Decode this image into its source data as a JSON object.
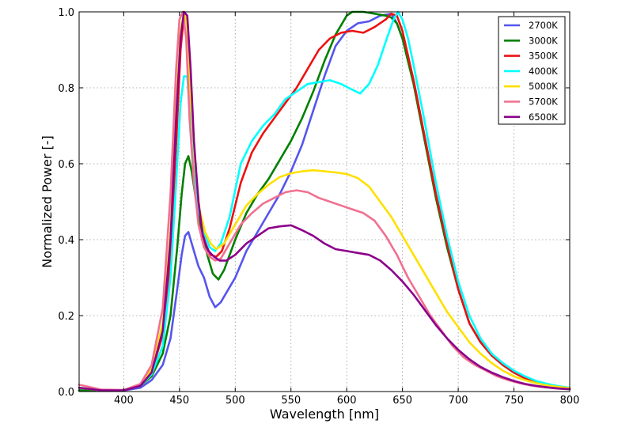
{
  "chart_data": {
    "type": "line",
    "title": "",
    "xlabel": "Wavelength [nm]",
    "ylabel": "Normalized Power [-]",
    "xlim": [
      360,
      800
    ],
    "ylim": [
      0,
      1.0
    ],
    "xticks": [
      400,
      450,
      500,
      550,
      600,
      650,
      700,
      750,
      800
    ],
    "yticks": [
      0.0,
      0.2,
      0.4,
      0.6,
      0.8,
      1.0
    ],
    "xtick_labels": [
      "400",
      "450",
      "500",
      "550",
      "600",
      "650",
      "700",
      "750",
      "800"
    ],
    "ytick_labels": [
      "0.0",
      "0.2",
      "0.4",
      "0.6",
      "0.8",
      "1.0"
    ],
    "grid": true,
    "legend_position": "top-right",
    "series": [
      {
        "name": "2700K",
        "color": "#5555ee",
        "x": [
          360,
          380,
          400,
          415,
          425,
          435,
          442,
          448,
          452,
          455,
          458,
          462,
          467,
          472,
          477,
          482,
          487,
          492,
          500,
          510,
          520,
          530,
          540,
          550,
          560,
          570,
          580,
          590,
          600,
          610,
          620,
          630,
          640,
          645,
          650,
          660,
          670,
          680,
          690,
          700,
          710,
          720,
          730,
          740,
          750,
          760,
          770,
          780,
          790,
          800
        ],
        "y": [
          0.003,
          0.002,
          0.003,
          0.01,
          0.03,
          0.07,
          0.14,
          0.27,
          0.36,
          0.41,
          0.42,
          0.38,
          0.33,
          0.3,
          0.25,
          0.222,
          0.235,
          0.26,
          0.3,
          0.37,
          0.42,
          0.47,
          0.52,
          0.58,
          0.65,
          0.74,
          0.83,
          0.91,
          0.95,
          0.97,
          0.975,
          0.99,
          0.995,
          0.97,
          0.93,
          0.82,
          0.67,
          0.52,
          0.39,
          0.27,
          0.18,
          0.13,
          0.095,
          0.07,
          0.05,
          0.035,
          0.025,
          0.018,
          0.012,
          0.008
        ]
      },
      {
        "name": "3000K",
        "color": "#008000",
        "x": [
          360,
          380,
          400,
          415,
          425,
          435,
          442,
          448,
          452,
          455,
          458,
          461,
          465,
          470,
          475,
          480,
          485,
          490,
          500,
          510,
          520,
          530,
          540,
          550,
          560,
          570,
          580,
          590,
          600,
          605,
          615,
          625,
          635,
          640,
          645,
          650,
          660,
          670,
          680,
          690,
          700,
          710,
          720,
          730,
          740,
          750,
          760,
          770,
          780,
          790,
          800
        ],
        "y": [
          0.003,
          0.002,
          0.003,
          0.015,
          0.04,
          0.1,
          0.2,
          0.38,
          0.52,
          0.6,
          0.62,
          0.58,
          0.5,
          0.42,
          0.36,
          0.31,
          0.295,
          0.32,
          0.4,
          0.47,
          0.52,
          0.56,
          0.61,
          0.66,
          0.72,
          0.79,
          0.87,
          0.94,
          0.99,
          1.0,
          1.0,
          0.995,
          0.99,
          0.985,
          0.97,
          0.93,
          0.81,
          0.66,
          0.51,
          0.38,
          0.27,
          0.18,
          0.13,
          0.095,
          0.07,
          0.05,
          0.035,
          0.025,
          0.018,
          0.012,
          0.008
        ]
      },
      {
        "name": "3500K",
        "color": "#ee1111",
        "x": [
          360,
          380,
          400,
          415,
          425,
          435,
          442,
          447,
          451,
          454,
          457,
          460,
          464,
          468,
          473,
          478,
          483,
          488,
          495,
          505,
          515,
          525,
          535,
          545,
          555,
          565,
          575,
          585,
          595,
          605,
          615,
          625,
          635,
          640,
          645,
          650,
          660,
          670,
          680,
          690,
          700,
          710,
          720,
          730,
          740,
          750,
          760,
          770,
          780,
          790,
          800
        ],
        "y": [
          0.01,
          0.003,
          0.003,
          0.015,
          0.05,
          0.15,
          0.35,
          0.65,
          0.9,
          0.99,
          0.98,
          0.8,
          0.6,
          0.47,
          0.39,
          0.36,
          0.355,
          0.37,
          0.43,
          0.55,
          0.63,
          0.68,
          0.72,
          0.76,
          0.8,
          0.85,
          0.9,
          0.93,
          0.945,
          0.95,
          0.945,
          0.96,
          0.98,
          0.995,
          0.99,
          0.95,
          0.82,
          0.67,
          0.52,
          0.39,
          0.27,
          0.18,
          0.13,
          0.095,
          0.07,
          0.05,
          0.035,
          0.025,
          0.018,
          0.012,
          0.008
        ]
      },
      {
        "name": "4000K",
        "color": "#00ffff",
        "x": [
          360,
          380,
          400,
          415,
          425,
          435,
          442,
          447,
          451,
          454,
          457,
          460,
          463,
          467,
          472,
          477,
          482,
          487,
          495,
          505,
          515,
          525,
          535,
          545,
          555,
          565,
          575,
          585,
          595,
          605,
          612,
          620,
          628,
          636,
          642,
          646,
          650,
          655,
          660,
          670,
          680,
          690,
          700,
          710,
          720,
          730,
          740,
          750,
          760,
          770,
          780,
          790,
          800
        ],
        "y": [
          0.01,
          0.003,
          0.003,
          0.015,
          0.045,
          0.12,
          0.3,
          0.55,
          0.76,
          0.83,
          0.83,
          0.7,
          0.57,
          0.48,
          0.42,
          0.38,
          0.37,
          0.39,
          0.46,
          0.6,
          0.66,
          0.7,
          0.73,
          0.77,
          0.79,
          0.81,
          0.815,
          0.82,
          0.81,
          0.795,
          0.785,
          0.81,
          0.86,
          0.93,
          0.98,
          1.0,
          0.98,
          0.93,
          0.86,
          0.71,
          0.55,
          0.41,
          0.29,
          0.2,
          0.14,
          0.1,
          0.075,
          0.055,
          0.04,
          0.028,
          0.02,
          0.014,
          0.01
        ]
      },
      {
        "name": "5000K",
        "color": "#ffe000",
        "x": [
          360,
          380,
          400,
          415,
          425,
          435,
          442,
          447,
          451,
          454,
          457,
          460,
          464,
          468,
          473,
          478,
          483,
          490,
          500,
          510,
          520,
          530,
          540,
          550,
          560,
          570,
          580,
          590,
          600,
          610,
          620,
          630,
          640,
          650,
          660,
          670,
          680,
          690,
          700,
          710,
          720,
          730,
          740,
          750,
          760,
          770,
          780,
          790,
          800
        ],
        "y": [
          0.01,
          0.003,
          0.003,
          0.02,
          0.06,
          0.18,
          0.42,
          0.75,
          0.95,
          1.0,
          0.96,
          0.78,
          0.6,
          0.48,
          0.42,
          0.39,
          0.375,
          0.39,
          0.44,
          0.49,
          0.52,
          0.545,
          0.565,
          0.575,
          0.58,
          0.583,
          0.58,
          0.577,
          0.573,
          0.562,
          0.54,
          0.5,
          0.46,
          0.41,
          0.36,
          0.31,
          0.26,
          0.21,
          0.17,
          0.13,
          0.1,
          0.075,
          0.055,
          0.04,
          0.03,
          0.022,
          0.016,
          0.012,
          0.009
        ]
      },
      {
        "name": "5700K",
        "color": "#f07090",
        "x": [
          360,
          380,
          400,
          415,
          425,
          435,
          442,
          447,
          450,
          453,
          456,
          459,
          463,
          467,
          472,
          477,
          482,
          487,
          495,
          505,
          515,
          525,
          535,
          545,
          555,
          565,
          575,
          585,
          595,
          605,
          615,
          625,
          635,
          645,
          655,
          665,
          675,
          685,
          695,
          705,
          715,
          725,
          735,
          745,
          755,
          765,
          775,
          785,
          800
        ],
        "y": [
          0.018,
          0.005,
          0.004,
          0.02,
          0.07,
          0.22,
          0.52,
          0.85,
          0.98,
          1.0,
          0.93,
          0.72,
          0.55,
          0.44,
          0.38,
          0.355,
          0.345,
          0.35,
          0.39,
          0.44,
          0.47,
          0.495,
          0.51,
          0.525,
          0.53,
          0.525,
          0.51,
          0.5,
          0.49,
          0.48,
          0.47,
          0.45,
          0.41,
          0.36,
          0.3,
          0.25,
          0.2,
          0.16,
          0.12,
          0.09,
          0.07,
          0.055,
          0.04,
          0.03,
          0.022,
          0.016,
          0.012,
          0.009,
          0.006
        ]
      },
      {
        "name": "6500K",
        "color": "#8b008b",
        "x": [
          360,
          380,
          400,
          415,
          425,
          435,
          442,
          447,
          451,
          454,
          457,
          460,
          463,
          467,
          471,
          476,
          481,
          486,
          492,
          500,
          510,
          520,
          530,
          540,
          550,
          560,
          570,
          580,
          590,
          600,
          610,
          620,
          630,
          640,
          650,
          660,
          670,
          680,
          690,
          700,
          710,
          720,
          730,
          740,
          750,
          760,
          770,
          780,
          790,
          800
        ],
        "y": [
          0.01,
          0.003,
          0.003,
          0.015,
          0.05,
          0.16,
          0.4,
          0.72,
          0.93,
          1.0,
          0.99,
          0.85,
          0.66,
          0.5,
          0.41,
          0.37,
          0.355,
          0.345,
          0.345,
          0.36,
          0.39,
          0.41,
          0.43,
          0.435,
          0.438,
          0.425,
          0.41,
          0.39,
          0.375,
          0.37,
          0.365,
          0.36,
          0.345,
          0.32,
          0.29,
          0.255,
          0.215,
          0.175,
          0.14,
          0.11,
          0.085,
          0.065,
          0.05,
          0.038,
          0.028,
          0.02,
          0.015,
          0.011,
          0.008,
          0.006
        ]
      }
    ]
  }
}
